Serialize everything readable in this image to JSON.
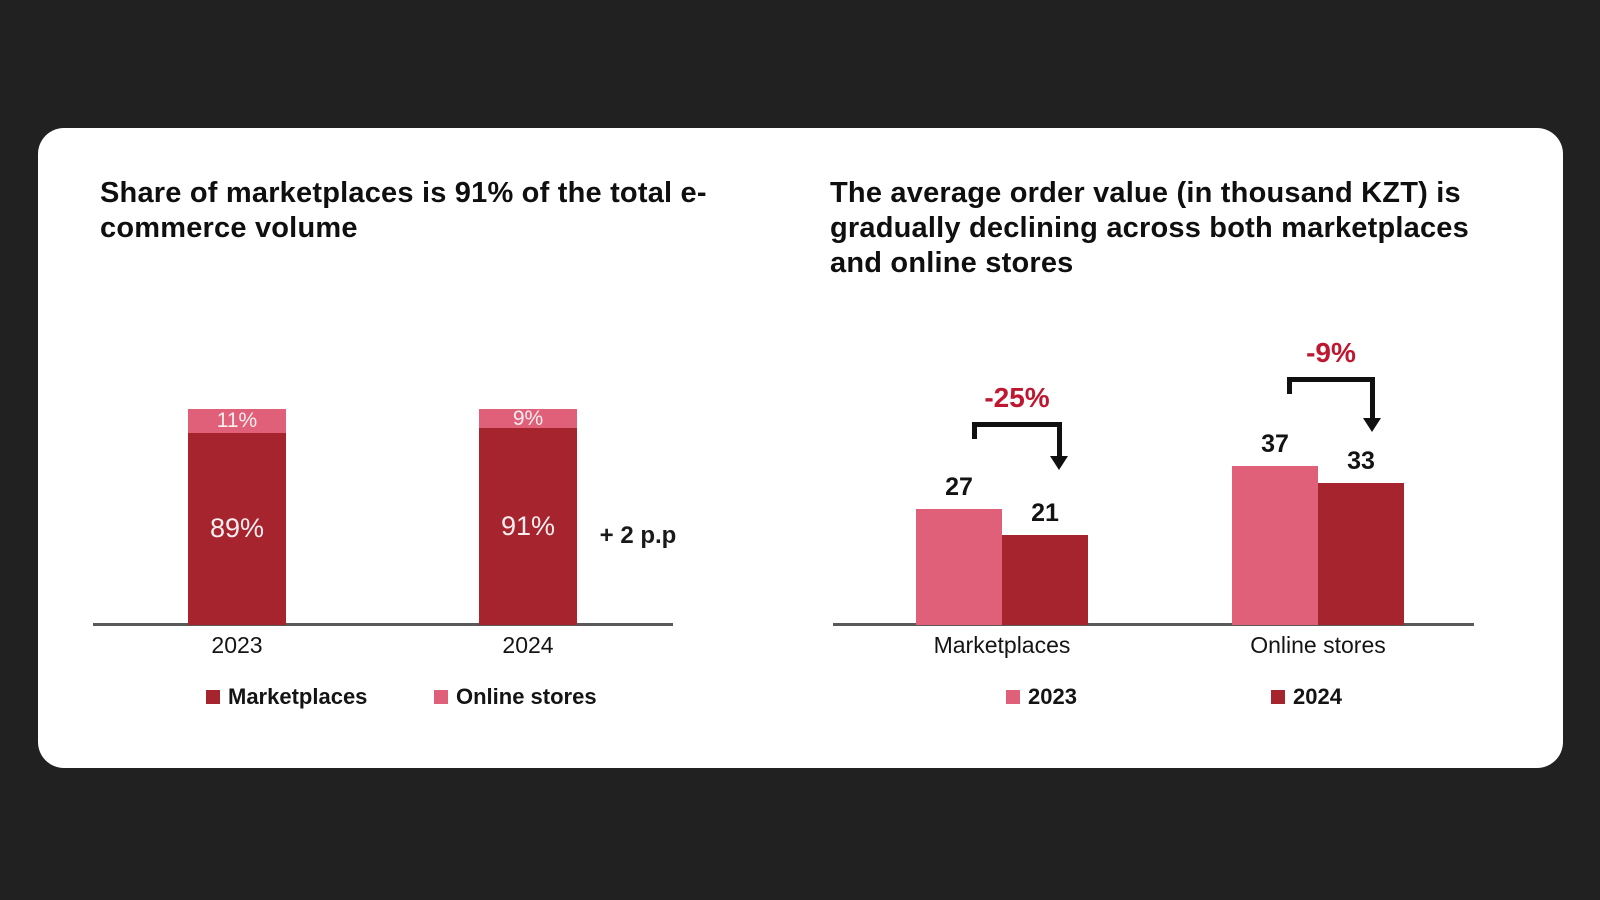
{
  "page": {
    "background": "#212121",
    "card_background": "#ffffff"
  },
  "colors": {
    "dark_red": "#a5242e",
    "pink": "#e0607a",
    "annotation_red": "#bf1730",
    "axis_gray": "#595959",
    "inner_label": "#fbeef0"
  },
  "chart_data": [
    {
      "type": "bar",
      "subtype": "stacked-100-percent",
      "title": "Share of marketplaces is 91% of the total e-commerce volume",
      "categories": [
        "2023",
        "2024"
      ],
      "series": [
        {
          "name": "Marketplaces",
          "values": [
            89,
            91
          ],
          "labels": [
            "89%",
            "91%"
          ],
          "color": "#a5242e"
        },
        {
          "name": "Online stores",
          "values": [
            11,
            9
          ],
          "labels": [
            "11%",
            "9%"
          ],
          "color": "#e0607a"
        }
      ],
      "annotation": "+ 2 p.p",
      "ylim": [
        0,
        100
      ],
      "grid": false,
      "legend_position": "bottom"
    },
    {
      "type": "bar",
      "subtype": "grouped",
      "title": "The average order value (in thousand KZT) is gradually declining across both marketplaces and online stores",
      "categories": [
        "Marketplaces",
        "Online stores"
      ],
      "series": [
        {
          "name": "2023",
          "values": [
            27,
            37
          ],
          "labels": [
            "27",
            "37"
          ],
          "color": "#e0607a"
        },
        {
          "name": "2024",
          "values": [
            21,
            33
          ],
          "labels": [
            "21",
            "33"
          ],
          "color": "#a5242e"
        }
      ],
      "annotations": [
        {
          "label": "-25%",
          "category_index": 0
        },
        {
          "label": "-9%",
          "category_index": 1
        }
      ],
      "grid": false,
      "legend_position": "bottom"
    }
  ]
}
